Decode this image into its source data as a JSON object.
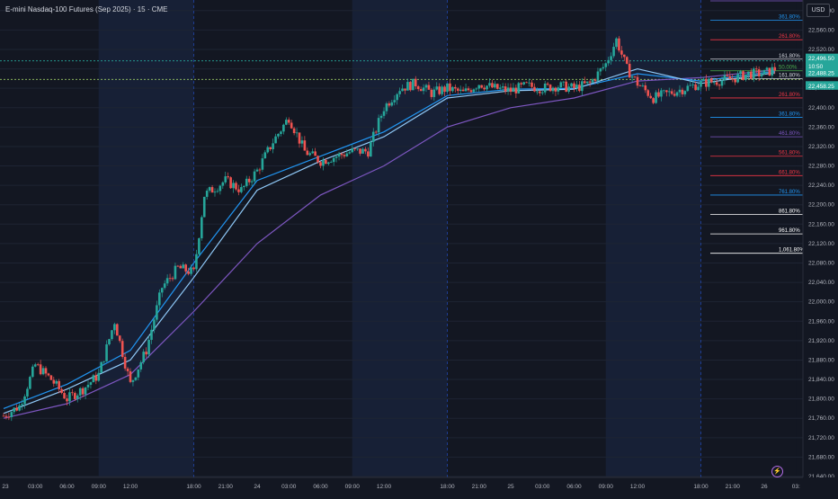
{
  "header": {
    "symbol_title": "E-mini Nasdaq-100 Futures (Sep 2025) · 15 · CME"
  },
  "price_axis": {
    "currency_button": "USD",
    "ticks": [
      "22,600.00",
      "22,560.00",
      "22,520.00",
      "22,480.00",
      "22,440.00",
      "22,400.00",
      "22,360.00",
      "22,320.00",
      "22,280.00",
      "22,240.00",
      "22,200.00",
      "22,160.00",
      "22,120.00",
      "22,080.00",
      "22,040.00",
      "22,000.00",
      "21,960.00",
      "21,920.00",
      "21,880.00",
      "21,840.00",
      "21,800.00",
      "21,760.00",
      "21,720.00",
      "21,680.00",
      "21,640.00"
    ],
    "badges": [
      {
        "value": "22,496.50",
        "color": "#26a69a"
      },
      {
        "value": "10:50",
        "color": "#26a69a"
      },
      {
        "value": "22,488.25",
        "color": "#26a69a"
      },
      {
        "value": "22,458.25",
        "color": "#26a69a"
      }
    ]
  },
  "time_axis": {
    "labels": [
      "23",
      "03:00",
      "06:00",
      "09:00",
      "12:00",
      "18:00",
      "21:00",
      "24",
      "03:00",
      "06:00",
      "09:00",
      "12:00",
      "18:00",
      "21:00",
      "25",
      "03:00",
      "06:00",
      "09:00",
      "12:00",
      "18:00",
      "21:00",
      "26",
      "03:"
    ]
  },
  "fib_levels": [
    {
      "label": "461.80%",
      "color": "#7e57c2"
    },
    {
      "label": "361.80%",
      "color": "#2196f3"
    },
    {
      "label": "261.80%",
      "color": "#f23645"
    },
    {
      "label": "161.80%",
      "color": "#d1d4dc"
    },
    {
      "label": "50.00%",
      "color": "#4caf50"
    },
    {
      "label": "161.80%",
      "color": "#d1d4dc"
    },
    {
      "label": "261.80%",
      "color": "#f23645"
    },
    {
      "label": "361.80%",
      "color": "#2196f3"
    },
    {
      "label": "461.80%",
      "color": "#7e57c2"
    },
    {
      "label": "561.80%",
      "color": "#f23645"
    },
    {
      "label": "661.80%",
      "color": "#f23645"
    },
    {
      "label": "761.80%",
      "color": "#2196f3"
    },
    {
      "label": "861.80%",
      "color": "#ffffff"
    },
    {
      "label": "961.80%",
      "color": "#ffffff"
    },
    {
      "label": "1,061.80%",
      "color": "#ffffff"
    }
  ],
  "chart_data": {
    "type": "candlestick",
    "y_unit": "USD",
    "ylim": [
      21640,
      22620
    ],
    "sessions": [
      {
        "start": "23 00:00",
        "end": "23 09:00",
        "shade": "dark"
      },
      {
        "start": "23 09:00",
        "end": "23 18:00",
        "shade": "blue"
      },
      {
        "start": "23 18:00",
        "end": "24 09:00",
        "shade": "dark"
      },
      {
        "start": "24 09:00",
        "end": "24 18:00",
        "shade": "blue"
      },
      {
        "start": "24 18:00",
        "end": "25 09:00",
        "shade": "dark"
      },
      {
        "start": "25 09:00",
        "end": "25 18:00",
        "shade": "blue"
      },
      {
        "start": "25 18:00",
        "end": "26 03:00",
        "shade": "dark"
      }
    ],
    "close_path": [
      [
        "23 00:00",
        21765
      ],
      [
        "23 01:30",
        21785
      ],
      [
        "23 03:00",
        21870
      ],
      [
        "23 04:30",
        21840
      ],
      [
        "23 06:00",
        21800
      ],
      [
        "23 07:30",
        21820
      ],
      [
        "23 09:00",
        21850
      ],
      [
        "23 10:30",
        21960
      ],
      [
        "23 12:00",
        21830
      ],
      [
        "23 13:30",
        21900
      ],
      [
        "23 15:00",
        22030
      ],
      [
        "23 16:30",
        22070
      ],
      [
        "23 18:00",
        22060
      ],
      [
        "23 19:00",
        22220
      ],
      [
        "23 21:00",
        22250
      ],
      [
        "23 22:30",
        22230
      ],
      [
        "24 00:00",
        22270
      ],
      [
        "24 01:30",
        22330
      ],
      [
        "24 03:00",
        22380
      ],
      [
        "24 04:30",
        22310
      ],
      [
        "24 06:00",
        22290
      ],
      [
        "24 07:30",
        22300
      ],
      [
        "24 09:00",
        22310
      ],
      [
        "24 10:30",
        22310
      ],
      [
        "24 12:00",
        22400
      ],
      [
        "24 13:30",
        22440
      ],
      [
        "24 15:00",
        22450
      ],
      [
        "24 16:30",
        22430
      ],
      [
        "24 18:00",
        22440
      ],
      [
        "24 19:30",
        22430
      ],
      [
        "24 21:00",
        22450
      ],
      [
        "24 22:30",
        22440
      ],
      [
        "25 00:00",
        22435
      ],
      [
        "25 01:30",
        22445
      ],
      [
        "25 03:00",
        22440
      ],
      [
        "25 04:30",
        22445
      ],
      [
        "25 06:00",
        22440
      ],
      [
        "25 07:30",
        22450
      ],
      [
        "25 09:00",
        22490
      ],
      [
        "25 10:00",
        22540
      ],
      [
        "25 11:00",
        22480
      ],
      [
        "25 12:00",
        22450
      ],
      [
        "25 13:30",
        22420
      ],
      [
        "25 15:00",
        22430
      ],
      [
        "25 16:30",
        22440
      ],
      [
        "25 18:00",
        22450
      ],
      [
        "25 19:30",
        22455
      ],
      [
        "25 21:00",
        22460
      ],
      [
        "25 22:30",
        22470
      ],
      [
        "26 00:00",
        22470
      ],
      [
        "26 01:00",
        22480
      ]
    ],
    "moving_averages": [
      {
        "color": "#7e57c2",
        "path": [
          [
            "23 00:00",
            21760
          ],
          [
            "23 06:00",
            21790
          ],
          [
            "23 12:00",
            21850
          ],
          [
            "23 18:00",
            21980
          ],
          [
            "24 00:00",
            22120
          ],
          [
            "24 06:00",
            22220
          ],
          [
            "24 12:00",
            22280
          ],
          [
            "24 18:00",
            22360
          ],
          [
            "25 00:00",
            22400
          ],
          [
            "25 06:00",
            22420
          ],
          [
            "25 12:00",
            22455
          ],
          [
            "25 18:00",
            22462
          ],
          [
            "26 01:00",
            22478
          ]
        ]
      },
      {
        "color": "#2196f3",
        "path": [
          [
            "23 00:00",
            21780
          ],
          [
            "23 06:00",
            21830
          ],
          [
            "23 12:00",
            21900
          ],
          [
            "23 18:00",
            22080
          ],
          [
            "24 00:00",
            22250
          ],
          [
            "24 06:00",
            22300
          ],
          [
            "24 12:00",
            22350
          ],
          [
            "24 18:00",
            22425
          ],
          [
            "25 00:00",
            22438
          ],
          [
            "25 06:00",
            22440
          ],
          [
            "25 12:00",
            22470
          ],
          [
            "25 18:00",
            22455
          ],
          [
            "26 01:00",
            22475
          ]
        ]
      },
      {
        "color": "#90caf9",
        "path": [
          [
            "23 00:00",
            21770
          ],
          [
            "23 06:00",
            21820
          ],
          [
            "23 12:00",
            21880
          ],
          [
            "23 18:00",
            22050
          ],
          [
            "24 00:00",
            22230
          ],
          [
            "24 06:00",
            22290
          ],
          [
            "24 12:00",
            22340
          ],
          [
            "24 18:00",
            22420
          ],
          [
            "25 00:00",
            22435
          ],
          [
            "25 06:00",
            22438
          ],
          [
            "25 12:00",
            22480
          ],
          [
            "25 18:00",
            22450
          ],
          [
            "26 01:00",
            22472
          ]
        ]
      }
    ],
    "fib_values": [
      22620,
      22580,
      22540,
      22500,
      22476,
      22460,
      22420,
      22380,
      22340,
      22300,
      22260,
      22220,
      22180,
      22140,
      22100
    ],
    "horizontal_lines": [
      {
        "value": 22496.5,
        "style": "dotted",
        "color": "#26a69a"
      },
      {
        "value": 22458.25,
        "style": "dotted",
        "color": "#9ccc65"
      }
    ]
  }
}
